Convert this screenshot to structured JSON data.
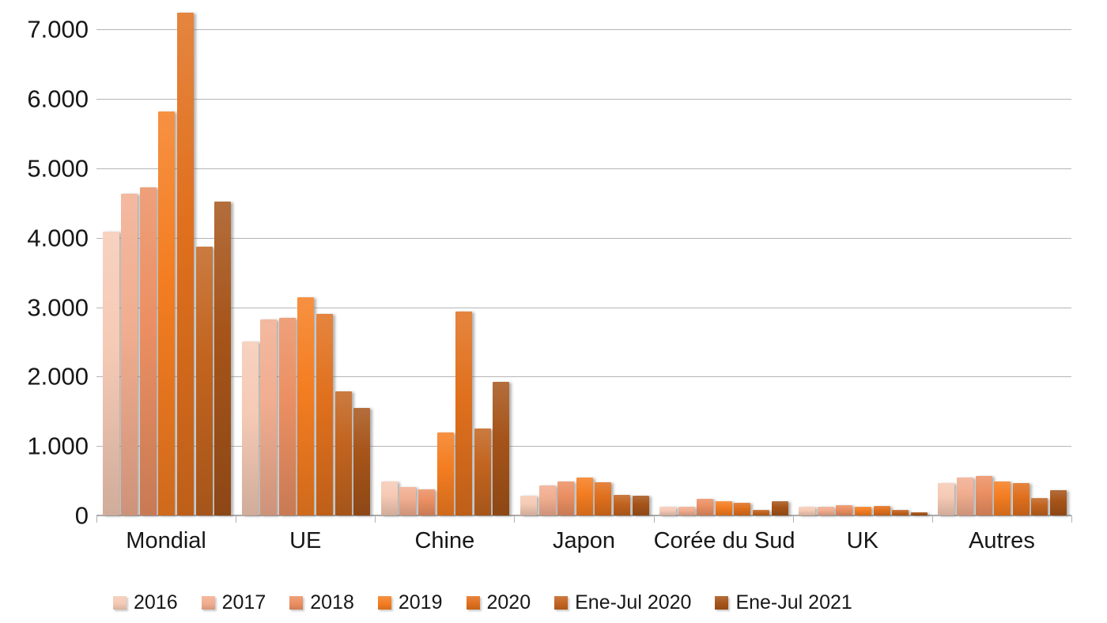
{
  "chart_data": {
    "type": "bar",
    "title": "",
    "xlabel": "",
    "ylabel": "",
    "categories": [
      "Mondial",
      "UE",
      "Chine",
      "Japon",
      "Corée du Sud",
      "UK",
      "Autres"
    ],
    "series": [
      {
        "name": "2016",
        "color": "#f5cab5",
        "values": [
          4090,
          2500,
          490,
          290,
          120,
          120,
          470
        ]
      },
      {
        "name": "2017",
        "color": "#f1ad8f",
        "values": [
          4630,
          2820,
          410,
          430,
          130,
          130,
          545
        ]
      },
      {
        "name": "2018",
        "color": "#eb8f63",
        "values": [
          4730,
          2845,
          375,
          495,
          240,
          145,
          570
        ]
      },
      {
        "name": "2019",
        "color": "#f47d21",
        "values": [
          5820,
          3145,
          1195,
          545,
          210,
          125,
          490
        ]
      },
      {
        "name": "2020",
        "color": "#e0701d",
        "values": [
          7240,
          2900,
          2940,
          475,
          185,
          140,
          465
        ]
      },
      {
        "name": "Ene-Jul 2020",
        "color": "#c2641f",
        "values": [
          3870,
          1790,
          1250,
          295,
          75,
          80,
          250
        ]
      },
      {
        "name": "Ene-Jul 2021",
        "color": "#a65419",
        "values": [
          4520,
          1550,
          1930,
          290,
          210,
          45,
          360
        ]
      }
    ],
    "y_axis": {
      "min": 0,
      "max": 7000,
      "step": 1000,
      "tick_labels": [
        "0",
        "1.000",
        "2.000",
        "3.000",
        "4.000",
        "5.000",
        "6.000",
        "7.000"
      ]
    },
    "grid": true,
    "legend_position": "bottom"
  }
}
